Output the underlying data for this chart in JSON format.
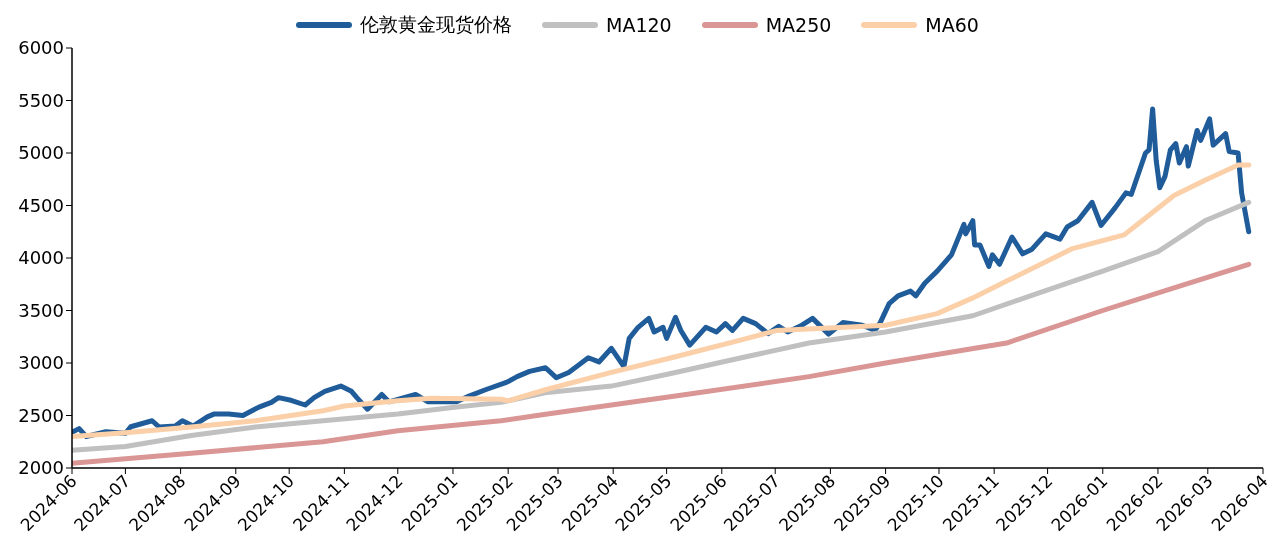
{
  "chart_data": {
    "type": "line",
    "legend": "top",
    "marker": "none",
    "line_style": "solid",
    "grid": false,
    "xlim": [
      "2024-06",
      "2026-04"
    ],
    "xticks": [
      "2024-06",
      "2024-07",
      "2024-08",
      "2024-09",
      "2024-10",
      "2024-11",
      "2024-12",
      "2025-01",
      "2025-02",
      "2025-03",
      "2025-04",
      "2025-05",
      "2025-06",
      "2025-07",
      "2025-08",
      "2025-09",
      "2025-10",
      "2025-11",
      "2025-12",
      "2026-01",
      "2026-02",
      "2026-03",
      "2026-04"
    ],
    "ylim": [
      2000,
      6000
    ],
    "yticks": [
      2000,
      2500,
      3000,
      3500,
      4000,
      4500,
      5000,
      5500,
      6000
    ],
    "series": [
      {
        "name": "伦敦黄金现货价格",
        "color": "#1f5c99",
        "x": [
          "2024-06-01",
          "2024-06-05",
          "2024-06-09",
          "2024-06-20",
          "2024-07-01",
          "2024-07-04",
          "2024-07-16",
          "2024-07-20",
          "2024-07-29",
          "2024-08-02",
          "2024-08-08",
          "2024-08-16",
          "2024-08-20",
          "2024-08-28",
          "2024-09-05",
          "2024-09-14",
          "2024-09-21",
          "2024-09-25",
          "2024-10-02",
          "2024-10-10",
          "2024-10-15",
          "2024-10-21",
          "2024-10-30",
          "2024-11-05",
          "2024-11-08",
          "2024-11-14",
          "2024-11-22",
          "2024-11-26",
          "2024-12-11",
          "2024-12-18",
          "2025-01-03",
          "2025-01-10",
          "2025-01-20",
          "2025-01-31",
          "2025-02-06",
          "2025-02-13",
          "2025-02-22",
          "2025-02-28",
          "2025-03-07",
          "2025-03-13",
          "2025-03-18",
          "2025-03-24",
          "2025-03-31",
          "2025-04-07",
          "2025-04-10",
          "2025-04-15",
          "2025-04-21",
          "2025-04-24",
          "2025-04-29",
          "2025-05-01",
          "2025-05-06",
          "2025-05-09",
          "2025-05-14",
          "2025-05-23",
          "2025-05-29",
          "2025-06-03",
          "2025-06-07",
          "2025-06-13",
          "2025-06-20",
          "2025-06-27",
          "2025-07-03",
          "2025-07-08",
          "2025-07-16",
          "2025-07-22",
          "2025-07-31",
          "2025-08-08",
          "2025-08-19",
          "2025-08-26",
          "2025-08-29",
          "2025-09-03",
          "2025-09-08",
          "2025-09-15",
          "2025-09-18",
          "2025-09-23",
          "2025-09-30",
          "2025-10-08",
          "2025-10-15",
          "2025-10-16",
          "2025-10-20",
          "2025-10-21",
          "2025-10-24",
          "2025-10-29",
          "2025-10-31",
          "2025-11-04",
          "2025-11-11",
          "2025-11-17",
          "2025-11-22",
          "2025-11-30",
          "2025-12-08",
          "2025-12-12",
          "2025-12-18",
          "2025-12-26",
          "2025-12-31",
          "2026-01-08",
          "2026-01-14",
          "2026-01-17",
          "2026-01-25",
          "2026-01-27",
          "2026-01-29",
          "2026-01-31",
          "2026-02-02",
          "2026-02-05",
          "2026-02-08",
          "2026-02-11",
          "2026-02-13",
          "2026-02-17",
          "2026-02-18",
          "2026-02-23",
          "2026-02-25",
          "2026-03-02",
          "2026-03-04",
          "2026-03-11",
          "2026-03-13",
          "2026-03-18",
          "2026-03-20",
          "2026-03-24"
        ],
        "values": [
          2340,
          2375,
          2300,
          2345,
          2330,
          2393,
          2450,
          2390,
          2400,
          2450,
          2400,
          2487,
          2515,
          2515,
          2500,
          2580,
          2625,
          2670,
          2645,
          2600,
          2670,
          2730,
          2780,
          2730,
          2670,
          2560,
          2700,
          2630,
          2700,
          2630,
          2630,
          2685,
          2750,
          2815,
          2870,
          2920,
          2955,
          2860,
          2910,
          2985,
          3050,
          3010,
          3140,
          2965,
          3235,
          3340,
          3425,
          3295,
          3340,
          3235,
          3435,
          3310,
          3170,
          3340,
          3295,
          3375,
          3310,
          3425,
          3375,
          3280,
          3350,
          3295,
          3360,
          3425,
          3275,
          3385,
          3360,
          3310,
          3385,
          3565,
          3640,
          3685,
          3640,
          3760,
          3875,
          4030,
          4320,
          4230,
          4355,
          4125,
          4125,
          3920,
          4030,
          3940,
          4200,
          4040,
          4080,
          4230,
          4180,
          4295,
          4355,
          4530,
          4310,
          4480,
          4620,
          4605,
          5000,
          5030,
          5420,
          4930,
          4670,
          4780,
          5030,
          5090,
          4905,
          5060,
          4875,
          5215,
          5120,
          5325,
          5075,
          5185,
          5015,
          5000,
          4620,
          4250
        ]
      },
      {
        "name": "MA120",
        "color": "#c0c0c0",
        "x": [
          "2024-06-01",
          "2024-07-01",
          "2024-08-07",
          "2024-09-12",
          "2024-10-20",
          "2024-12-01",
          "2025-01-03",
          "2025-01-28",
          "2025-02-23",
          "2025-03-31",
          "2025-05-06",
          "2025-06-12",
          "2025-07-20",
          "2025-09-01",
          "2025-10-20",
          "2025-11-25",
          "2026-01-01",
          "2026-02-01",
          "2026-02-28",
          "2026-03-24"
        ],
        "values": [
          2170,
          2205,
          2310,
          2390,
          2450,
          2515,
          2580,
          2625,
          2720,
          2780,
          2910,
          3050,
          3190,
          3295,
          3450,
          3660,
          3875,
          4060,
          4360,
          4530
        ]
      },
      {
        "name": "MA250",
        "color": "#d99694",
        "x": [
          "2024-06-01",
          "2024-08-07",
          "2024-10-20",
          "2024-12-01",
          "2025-01-28",
          "2025-02-23",
          "2025-05-06",
          "2025-07-20",
          "2025-09-01",
          "2025-11-08",
          "2026-01-01",
          "2026-02-10",
          "2026-03-24"
        ],
        "values": [
          2045,
          2140,
          2250,
          2355,
          2450,
          2515,
          2685,
          2870,
          3000,
          3190,
          3500,
          3715,
          3940
        ]
      },
      {
        "name": "MA60",
        "color": "#fbcfa8",
        "x": [
          "2024-06-01",
          "2024-07-01",
          "2024-08-07",
          "2024-09-12",
          "2024-10-20",
          "2024-11-01",
          "2024-12-01",
          "2024-12-20",
          "2025-01-28",
          "2025-02-01",
          "2025-02-23",
          "2025-03-31",
          "2025-05-06",
          "2025-06-12",
          "2025-07-02",
          "2025-09-01",
          "2025-09-30",
          "2025-10-20",
          "2025-11-08",
          "2025-12-15",
          "2026-01-13",
          "2026-01-22",
          "2026-02-10",
          "2026-02-28",
          "2026-03-18",
          "2026-03-24"
        ],
        "values": [
          2300,
          2335,
          2390,
          2450,
          2545,
          2590,
          2640,
          2665,
          2655,
          2640,
          2750,
          2910,
          3060,
          3220,
          3310,
          3360,
          3470,
          3620,
          3780,
          4090,
          4220,
          4340,
          4595,
          4745,
          4885,
          4885
        ]
      }
    ]
  }
}
